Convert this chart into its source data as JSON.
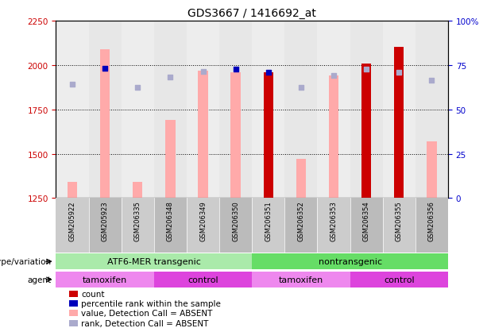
{
  "title": "GDS3667 / 1416692_at",
  "samples": [
    "GSM205922",
    "GSM205923",
    "GSM206335",
    "GSM206348",
    "GSM206349",
    "GSM206350",
    "GSM206351",
    "GSM206352",
    "GSM206353",
    "GSM206354",
    "GSM206355",
    "GSM206356"
  ],
  "bar_bottom": 1250,
  "count_values": [
    1340,
    2090,
    1340,
    1690,
    1970,
    1960,
    1960,
    1470,
    1940,
    2010,
    2100,
    1570
  ],
  "count_is_present": [
    false,
    false,
    false,
    false,
    false,
    false,
    true,
    false,
    false,
    true,
    true,
    false
  ],
  "percentile_values": [
    1890,
    1980,
    1875,
    1930,
    1965,
    1975,
    1960,
    1875,
    1940,
    1975,
    1960,
    1915
  ],
  "percentile_is_present": [
    false,
    true,
    false,
    false,
    false,
    true,
    true,
    false,
    false,
    false,
    false,
    false
  ],
  "ylim_left": [
    1250,
    2250
  ],
  "ylim_right": [
    0,
    100
  ],
  "yticks_left": [
    1250,
    1500,
    1750,
    2000,
    2250
  ],
  "yticks_right": [
    0,
    25,
    50,
    75,
    100
  ],
  "ytick_labels_right": [
    "0",
    "25",
    "50",
    "75",
    "100%"
  ],
  "left_axis_color": "#cc0000",
  "right_axis_color": "#0000cc",
  "bar_color_present": "#cc0000",
  "bar_color_absent": "#ffaaaa",
  "dot_color_present": "#0000bb",
  "dot_color_absent": "#aaaacc",
  "dot_size": 18,
  "genotype_groups": [
    {
      "label": "ATF6-MER transgenic",
      "start": 0,
      "end": 6,
      "color": "#aaeaaa"
    },
    {
      "label": "nontransgenic",
      "start": 6,
      "end": 12,
      "color": "#66dd66"
    }
  ],
  "agent_groups": [
    {
      "label": "tamoxifen",
      "start": 0,
      "end": 3,
      "color": "#ee88ee"
    },
    {
      "label": "control",
      "start": 3,
      "end": 6,
      "color": "#dd44dd"
    },
    {
      "label": "tamoxifen",
      "start": 6,
      "end": 9,
      "color": "#ee88ee"
    },
    {
      "label": "control",
      "start": 9,
      "end": 12,
      "color": "#dd44dd"
    }
  ],
  "legend_items": [
    {
      "label": "count",
      "color": "#cc0000"
    },
    {
      "label": "percentile rank within the sample",
      "color": "#0000bb"
    },
    {
      "label": "value, Detection Call = ABSENT",
      "color": "#ffaaaa"
    },
    {
      "label": "rank, Detection Call = ABSENT",
      "color": "#aaaacc"
    }
  ],
  "row_label_genotype": "genotype/variation",
  "row_label_agent": "agent",
  "sample_bg_colors": [
    "#cccccc",
    "#bbbbbb"
  ]
}
